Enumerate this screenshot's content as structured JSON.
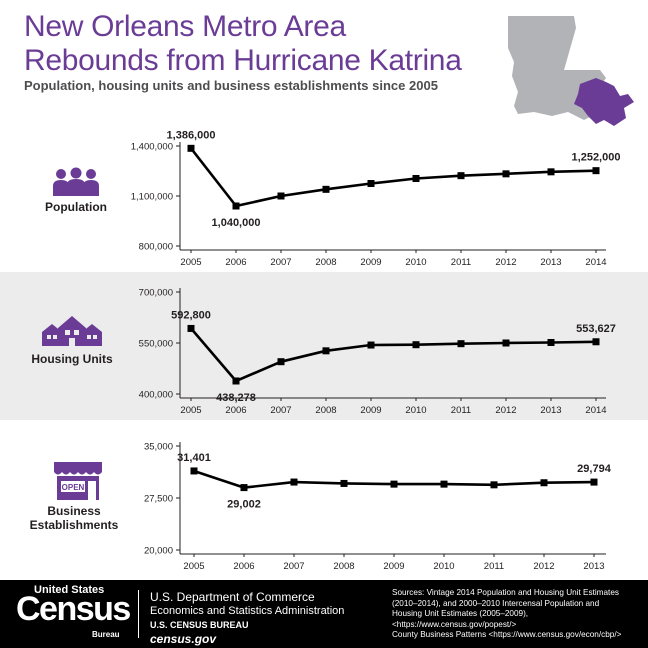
{
  "header": {
    "title_line1": "New Orleans Metro Area",
    "title_line2": "Rebounds from Hurricane Katrina",
    "subtitle": "Population, housing units and business establishments since 2005"
  },
  "colors": {
    "accent": "#6b3c96",
    "map_gray": "#b1b3b6",
    "panel_gray": "#ececed",
    "line": "#000000"
  },
  "chart_data": [
    {
      "type": "line",
      "title": "Population",
      "x": [
        "2005",
        "2006",
        "2007",
        "2008",
        "2009",
        "2010",
        "2011",
        "2012",
        "2013",
        "2014"
      ],
      "values": [
        1386000,
        1040000,
        1100000,
        1140000,
        1175000,
        1205000,
        1222000,
        1233000,
        1245000,
        1252000
      ],
      "ylim": [
        800000,
        1400000
      ],
      "yticks": [
        800000,
        1100000,
        1400000
      ],
      "ytick_labels": [
        "800,000",
        "1,100,000",
        "1,400,000"
      ],
      "labels": [
        {
          "index": 0,
          "text": "1,386,000"
        },
        {
          "index": 1,
          "text": "1,040,000"
        },
        {
          "index": 9,
          "text": "1,252,000"
        }
      ]
    },
    {
      "type": "line",
      "title": "Housing Units",
      "x": [
        "2005",
        "2006",
        "2007",
        "2008",
        "2009",
        "2010",
        "2011",
        "2012",
        "2013",
        "2014"
      ],
      "values": [
        592800,
        438278,
        495000,
        527000,
        544000,
        545000,
        548000,
        550000,
        551500,
        553627
      ],
      "ylim": [
        400000,
        700000
      ],
      "yticks": [
        400000,
        550000,
        700000
      ],
      "ytick_labels": [
        "400,000",
        "550,000",
        "700,000"
      ],
      "labels": [
        {
          "index": 0,
          "text": "592,800"
        },
        {
          "index": 1,
          "text": "438,278"
        },
        {
          "index": 9,
          "text": "553,627"
        }
      ]
    },
    {
      "type": "line",
      "title": "Business Establishments",
      "x": [
        "2005",
        "2006",
        "2007",
        "2008",
        "2009",
        "2010",
        "2011",
        "2012",
        "2013"
      ],
      "values": [
        31401,
        29002,
        29800,
        29600,
        29500,
        29500,
        29400,
        29700,
        29794
      ],
      "ylim": [
        20000,
        35000
      ],
      "yticks": [
        20000,
        27500,
        35000
      ],
      "ytick_labels": [
        "20,000",
        "27,500",
        "35,000"
      ],
      "labels": [
        {
          "index": 0,
          "text": "31,401"
        },
        {
          "index": 1,
          "text": "29,002"
        },
        {
          "index": 8,
          "text": "29,794"
        }
      ]
    }
  ],
  "icons": {
    "population": "people-icon",
    "housing": "houses-icon",
    "business": "storefront-icon",
    "storefront_sign": "OPEN",
    "map": "louisiana-map-icon"
  },
  "labels": {
    "population": "Population",
    "housing": "Housing Units",
    "business_line1": "Business",
    "business_line2": "Establishments"
  },
  "footer": {
    "census_us": "United States",
    "census_word": "Census",
    "census_bureau": "Bureau",
    "dept_line1": "U.S. Department of Commerce",
    "dept_line2": "Economics and Statistics Administration",
    "dept_line3": "U.S. CENSUS BUREAU",
    "dept_line4": "census.gov",
    "sources": [
      "Sources: Vintage 2014 Population and Housing Unit Estimates",
      "(2010–2014), and 2000–2010 Intercensal Population and",
      "Housing Unit Estimates (2005–2009),",
      "<https://www.census.gov/popest/>",
      "County Business Patterns <https://www.census.gov/econ/cbp/>"
    ]
  }
}
